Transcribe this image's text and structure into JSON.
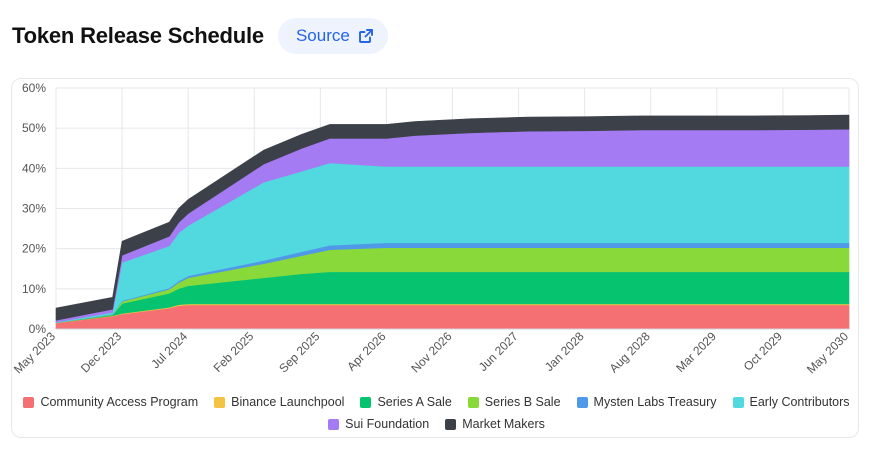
{
  "header": {
    "title": "Token Release Schedule",
    "source_label": "Source"
  },
  "colors": {
    "Community Access Program": "#f47072",
    "Binance Launchpool": "#f5c342",
    "Series A Sale": "#06c370",
    "Series B Sale": "#8ad93a",
    "Mysten Labs Treasury": "#4f99e8",
    "Early Contributors": "#52d9df",
    "Sui Foundation": "#a47bf2",
    "Market Makers": "#3c4049"
  },
  "chart_data": {
    "type": "area",
    "stacked": true,
    "x_ticks": [
      "May 2023",
      "Dec 2023",
      "Jul 2024",
      "Feb 2025",
      "Sep 2025",
      "Apr 2026",
      "Nov 2026",
      "Jun 2027",
      "Jan 2028",
      "Aug 2028",
      "Mar 2029",
      "Oct 2029",
      "May 2030"
    ],
    "x": [
      "2023-05",
      "2023-11",
      "2023-12",
      "2024-05",
      "2024-06",
      "2024-07",
      "2025-03",
      "2025-07",
      "2025-10",
      "2026-04",
      "2026-07",
      "2027-01",
      "2027-07",
      "2028-01",
      "2028-07",
      "2029-01",
      "2029-07",
      "2030-01",
      "2030-05"
    ],
    "y_ticks": [
      "0%",
      "10%",
      "20%",
      "30%",
      "40%",
      "50%",
      "60%"
    ],
    "ylim": [
      0,
      60
    ],
    "grid": true,
    "legend_position": "bottom",
    "series": [
      {
        "name": "Community Access Program",
        "values": [
          1.5,
          3.2,
          3.7,
          5.2,
          5.8,
          6.0,
          6.0,
          6.0,
          6.0,
          6.0,
          6.0,
          6.0,
          6.0,
          6.0,
          6.0,
          6.0,
          6.0,
          6.0,
          6.0
        ]
      },
      {
        "name": "Binance Launchpool",
        "values": [
          0.05,
          0.1,
          0.15,
          0.2,
          0.25,
          0.25,
          0.25,
          0.25,
          0.25,
          0.25,
          0.25,
          0.25,
          0.25,
          0.25,
          0.25,
          0.25,
          0.25,
          0.25,
          0.25
        ]
      },
      {
        "name": "Series A Sale",
        "values": [
          0,
          0.2,
          2.5,
          3.5,
          4.0,
          4.5,
          6.5,
          7.5,
          8.0,
          8.0,
          8.0,
          8.0,
          8.0,
          8.0,
          8.0,
          8.0,
          8.0,
          8.0,
          8.0
        ]
      },
      {
        "name": "Series B Sale",
        "values": [
          0,
          0.1,
          0.5,
          1.0,
          1.5,
          2.0,
          3.5,
          4.5,
          5.5,
          6.0,
          6.0,
          6.0,
          6.0,
          6.0,
          6.0,
          6.0,
          6.0,
          6.0,
          6.0
        ]
      },
      {
        "name": "Mysten Labs Treasury",
        "values": [
          0.05,
          0.1,
          0.2,
          0.3,
          0.4,
          0.5,
          0.8,
          1.0,
          1.1,
          1.2,
          1.2,
          1.2,
          1.2,
          1.2,
          1.2,
          1.2,
          1.2,
          1.2,
          1.2
        ]
      },
      {
        "name": "Early Contributors",
        "values": [
          0.1,
          0.4,
          9.5,
          10.5,
          12.0,
          12.5,
          19.5,
          20.0,
          20.5,
          19.0,
          19.0,
          19.0,
          19.0,
          19.0,
          19.0,
          19.0,
          19.0,
          19.0,
          19.0
        ]
      },
      {
        "name": "Sui Foundation",
        "values": [
          0.5,
          0.8,
          1.8,
          2.4,
          2.6,
          3.0,
          4.5,
          5.7,
          6.1,
          7.0,
          7.7,
          8.4,
          8.8,
          8.9,
          9.1,
          9.1,
          9.1,
          9.2,
          9.3
        ]
      },
      {
        "name": "Market Makers",
        "values": [
          3.0,
          3.0,
          3.5,
          3.5,
          3.5,
          3.5,
          3.5,
          3.5,
          3.5,
          3.5,
          3.5,
          3.5,
          3.5,
          3.5,
          3.5,
          3.5,
          3.5,
          3.5,
          3.5
        ]
      }
    ]
  }
}
